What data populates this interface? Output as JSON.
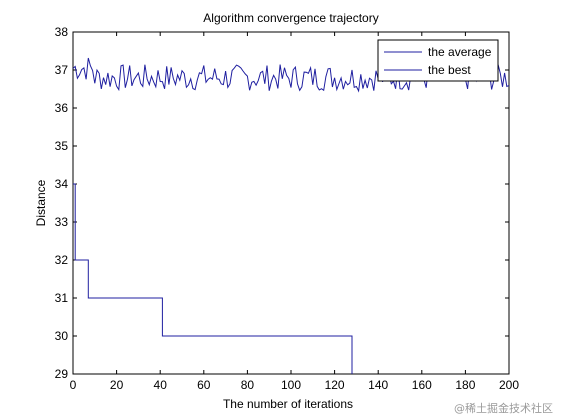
{
  "chart_data": {
    "type": "line",
    "title": "Algorithm convergence trajectory",
    "xlabel": "The number of iterations",
    "ylabel": "Distance",
    "xlim": [
      0,
      200
    ],
    "ylim": [
      29,
      38
    ],
    "xticks": [
      0,
      20,
      40,
      60,
      80,
      100,
      120,
      140,
      160,
      180,
      200
    ],
    "yticks": [
      29,
      30,
      31,
      32,
      33,
      34,
      35,
      36,
      37,
      38
    ],
    "grid": false,
    "legend_position": "top-right",
    "series": [
      {
        "name": "the average",
        "color": "#1f1fa0",
        "style": "noisy",
        "x": [
          0,
          200
        ],
        "mean": 36.8,
        "spread": 0.35
      },
      {
        "name": "the best",
        "color": "#1f1fa0",
        "style": "step",
        "x": [
          0,
          1,
          1,
          7,
          7,
          41,
          41,
          128,
          128
        ],
        "y": [
          34,
          34,
          32,
          32,
          31,
          31,
          30,
          30,
          29
        ]
      }
    ]
  },
  "watermark": "@稀土掘金技术社区"
}
